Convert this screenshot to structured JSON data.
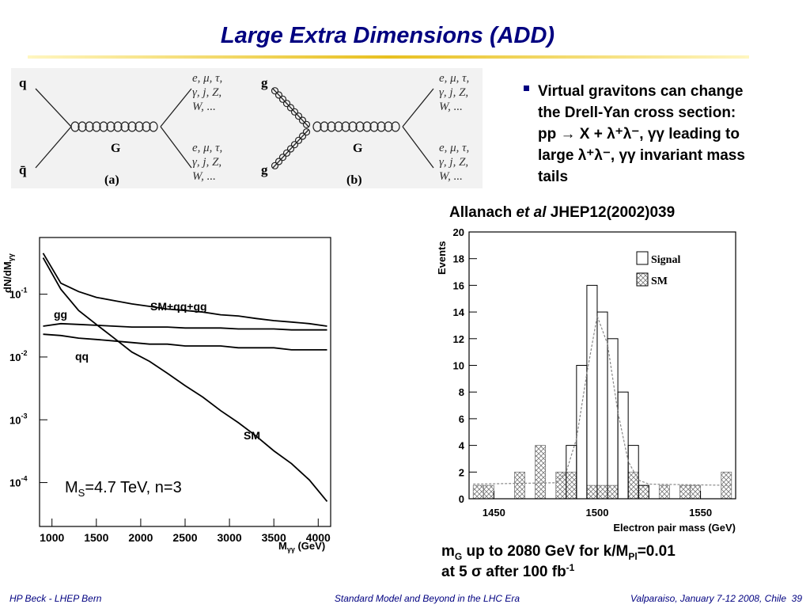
{
  "title": "Large Extra Dimensions (ADD)",
  "diagrams": [
    {
      "in": [
        "q",
        "q̄"
      ],
      "mediator": "G",
      "label": "(a)",
      "out": [
        [
          "e, μ, τ,",
          "γ, j, Z,",
          "W, ..."
        ],
        [
          "e, μ, τ,",
          "γ, j, Z,",
          "W, ..."
        ]
      ]
    },
    {
      "in": [
        "g",
        "g"
      ],
      "mediator": "G",
      "label": "(b)",
      "out": [
        [
          "e, μ, τ,",
          "γ, j, Z,",
          "W, ..."
        ],
        [
          "e, μ, τ,",
          "γ, j, Z,",
          "W, ..."
        ]
      ]
    }
  ],
  "bullet": [
    "Virtual gravitons can change",
    "the Drell-Yan cross section:",
    "pp → X + λ⁺λ⁻, γγ leading to",
    "large λ⁺λ⁻, γγ invariant mass",
    "tails"
  ],
  "citation": {
    "authors": "Allanach",
    "etal": "et al",
    "ref": "JHEP12(2002)039"
  },
  "caption": {
    "pre": "m",
    "sub1": "G",
    "mid": " up to 2080 GeV for k/M",
    "sub2": "Pl",
    "post": "=0.01",
    "line2": "at 5 σ after 100 fb",
    "sup": "-1"
  },
  "footer": {
    "left": "HP Beck - LHEP Bern",
    "center": "Standard Model and Beyond in the LHC Era",
    "right": "Valparaiso, January 7-12 2008, Chile",
    "page": 39
  },
  "chart_data": [
    {
      "type": "line",
      "log_y": true,
      "x": [
        900,
        1100,
        1300,
        1500,
        1700,
        1900,
        2100,
        2300,
        2500,
        2700,
        2900,
        3100,
        3300,
        3500,
        3700,
        3900,
        4100
      ],
      "series": [
        {
          "name": "SM+qq+gg",
          "color": "#000000",
          "values": [
            0.45,
            0.15,
            0.11,
            0.089,
            0.079,
            0.07,
            0.064,
            0.058,
            0.055,
            0.052,
            0.047,
            0.045,
            0.041,
            0.038,
            0.036,
            0.034,
            0.031
          ]
        },
        {
          "name": "gg",
          "color": "#000000",
          "values": [
            0.031,
            0.034,
            0.033,
            0.032,
            0.031,
            0.03,
            0.03,
            0.03,
            0.029,
            0.029,
            0.029,
            0.028,
            0.028,
            0.028,
            0.027,
            0.027,
            0.027
          ]
        },
        {
          "name": "qq",
          "color": "#000000",
          "values": [
            0.023,
            0.022,
            0.02,
            0.019,
            0.018,
            0.017,
            0.016,
            0.016,
            0.015,
            0.015,
            0.015,
            0.014,
            0.014,
            0.014,
            0.013,
            0.013,
            0.013
          ]
        },
        {
          "name": "SM",
          "color": "#000000",
          "values": [
            0.38,
            0.12,
            0.055,
            0.033,
            0.02,
            0.012,
            0.0085,
            0.0055,
            0.0035,
            0.0023,
            0.0014,
            0.0009,
            0.00055,
            0.00032,
            0.0002,
            0.00011,
            5e-05
          ]
        }
      ],
      "xlim": [
        860,
        4140
      ],
      "xticks": [
        1000,
        1500,
        2000,
        2500,
        3000,
        3500,
        4000
      ],
      "ylim": [
        2e-05,
        0.8
      ],
      "yticks": [
        {
          "value": 0.1,
          "label": "10-1"
        },
        {
          "value": 0.01,
          "label": "10-2"
        },
        {
          "value": 0.001,
          "label": "10-3"
        },
        {
          "value": 0.0001,
          "label": "10-4"
        }
      ],
      "ylabel": {
        "text": "dN/dM",
        "sub": "γγ"
      },
      "xlabel": {
        "text": "M",
        "sub": "γγ",
        "unit": " (GeV)"
      },
      "annotation": {
        "symbol": "M",
        "sub": "S",
        "text": "=4.7 TeV, n=3"
      }
    },
    {
      "type": "histogram",
      "bins": [
        1440,
        1445,
        1450,
        1455,
        1460,
        1465,
        1470,
        1475,
        1480,
        1485,
        1490,
        1495,
        1500,
        1505,
        1510,
        1515,
        1520,
        1525,
        1530,
        1535,
        1540,
        1545,
        1550,
        1555,
        1560,
        1565
      ],
      "series": [
        {
          "name": "Signal",
          "color": "#000000",
          "pattern": "none",
          "values": [
            0,
            0,
            0,
            0,
            0,
            0,
            0,
            0,
            0,
            4,
            10,
            16,
            14,
            12,
            8,
            4,
            1,
            0,
            0,
            0,
            0,
            0,
            0,
            0,
            0
          ]
        },
        {
          "name": "SM",
          "color": "#777777",
          "pattern": "hatch",
          "values": [
            1,
            1,
            0,
            0,
            2,
            0,
            4,
            0,
            2,
            2,
            0,
            1,
            1,
            1,
            0,
            2,
            1,
            0,
            1,
            0,
            1,
            1,
            0,
            0,
            2
          ]
        }
      ],
      "fit": {
        "x": [
          1440,
          1480,
          1485,
          1490,
          1495,
          1500,
          1505,
          1510,
          1515,
          1520,
          1525,
          1565
        ],
        "values": [
          1.1,
          1.2,
          2,
          4.5,
          9.4,
          13.7,
          11.6,
          6.5,
          2.8,
          1.4,
          1.1,
          1.0
        ],
        "color": "#888888",
        "dashed": true
      },
      "xlim": [
        1438,
        1567
      ],
      "xticks": [
        1450,
        1500,
        1550
      ],
      "ylim": [
        0,
        20
      ],
      "yticks": [
        0,
        2,
        4,
        6,
        8,
        10,
        12,
        14,
        16,
        18,
        20
      ],
      "ylabel": "Events",
      "xlabel": "Electron pair mass (GeV)"
    }
  ]
}
